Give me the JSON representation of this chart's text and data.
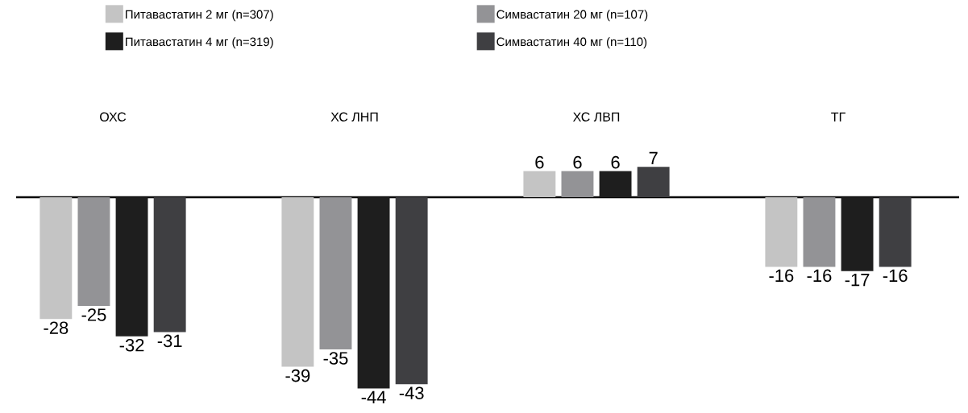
{
  "chart_data": {
    "type": "bar",
    "categories": [
      "ОХС",
      "ХС ЛНП",
      "ХС ЛВП",
      "ТГ"
    ],
    "series": [
      {
        "name": "Питавастатин 2 мг (n=307)",
        "color": "#c4c4c4",
        "values": [
          -28,
          -39,
          6,
          -16
        ]
      },
      {
        "name": "Симвастатин 20 мг (n=107)",
        "color": "#939396",
        "values": [
          -25,
          -35,
          6,
          -16
        ]
      },
      {
        "name": "Питавастатин 4 мг (n=319)",
        "color": "#1e1e1e",
        "values": [
          -32,
          -44,
          6,
          -17
        ]
      },
      {
        "name": "Симвастатин 40 мг (n=110)",
        "color": "#3f3f42",
        "values": [
          -31,
          -43,
          7,
          -16
        ]
      }
    ],
    "data_labels": true,
    "legend": "top"
  }
}
